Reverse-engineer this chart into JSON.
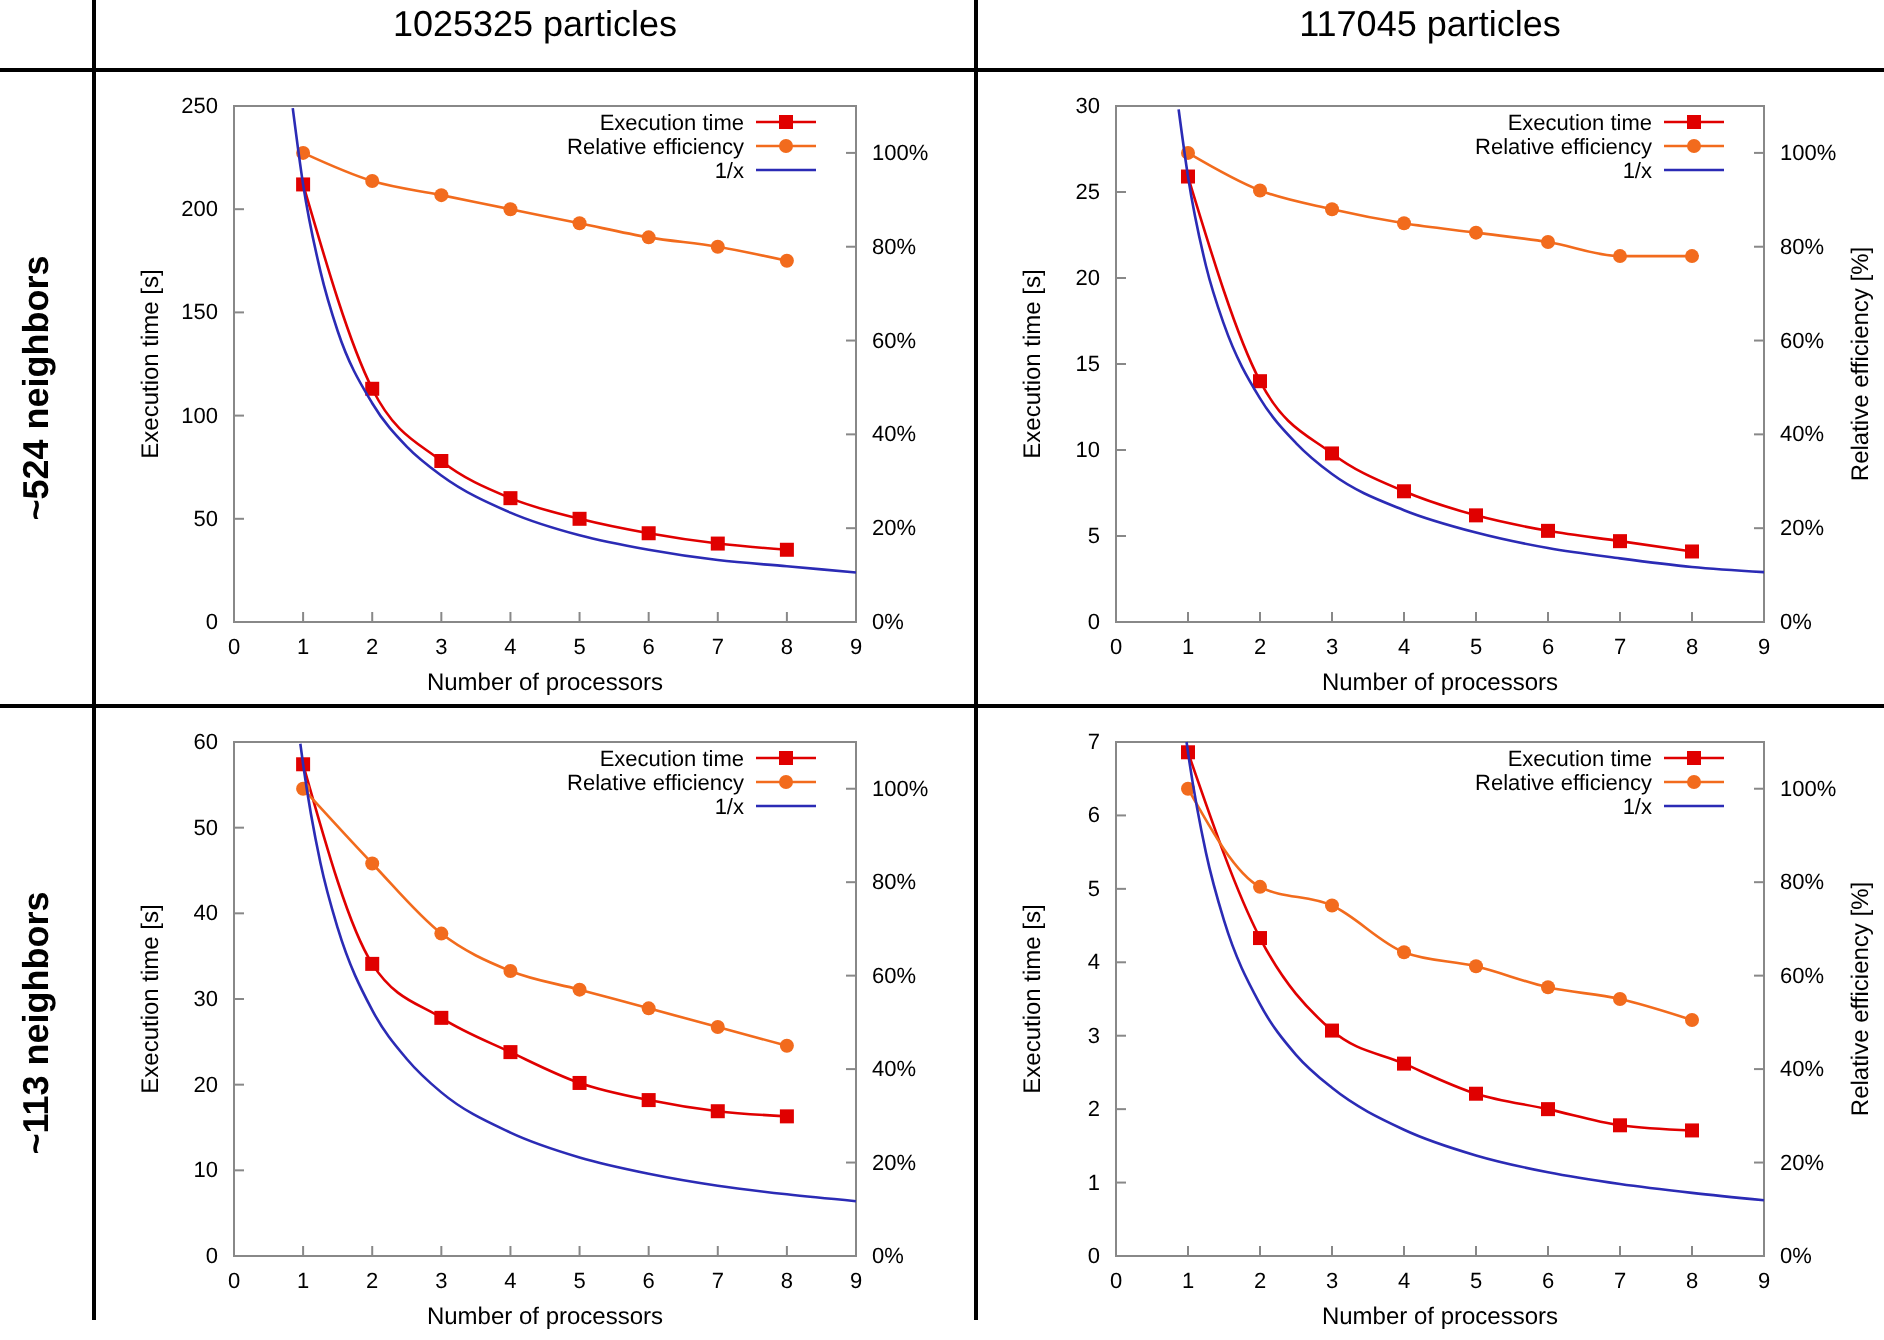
{
  "chart_data": [
    {
      "type": "line",
      "title": "1025325 particles",
      "annotations": [
        "~524 neighbors"
      ],
      "xlabel": "Number of processors",
      "ylabel": "Execution time [s]",
      "x": [
        1,
        2,
        3,
        4,
        5,
        6,
        7,
        8
      ],
      "xlim": [
        0,
        9
      ],
      "xticks": [
        0,
        1,
        2,
        3,
        4,
        5,
        6,
        7,
        8,
        9
      ],
      "ylim": [
        0,
        250
      ],
      "yticks": [
        0,
        50,
        100,
        150,
        200,
        250
      ],
      "y2lim": [
        0,
        110
      ],
      "y2ticks": [
        {
          "value": 0,
          "label": "0%"
        },
        {
          "value": 20,
          "label": "20%"
        },
        {
          "value": 40,
          "label": "40%"
        },
        {
          "value": 60,
          "label": "60%"
        },
        {
          "value": 80,
          "label": "80%"
        },
        {
          "value": 100,
          "label": "100%"
        }
      ],
      "grid": false,
      "legend": "top right",
      "series": [
        {
          "name": "Execution time",
          "color": "#e00000",
          "marker": "square",
          "values": [
            212,
            113,
            78,
            60,
            50,
            43,
            38,
            35
          ]
        },
        {
          "name": "Relative efficiency",
          "color": "#f26b1d",
          "marker": "circle",
          "axis": "y2",
          "values": [
            100,
            94,
            91,
            88,
            85,
            82,
            80,
            77
          ]
        },
        {
          "name": "1/x",
          "color": "#2b2bb5",
          "marker": "none",
          "x": [
            0.85,
            1,
            1.25,
            1.5,
            2,
            2.5,
            3,
            4,
            5,
            6,
            7,
            8,
            9
          ],
          "values": [
            249,
            212,
            170,
            141,
            106,
            85,
            71,
            53,
            42,
            35,
            30,
            27,
            24
          ]
        }
      ]
    },
    {
      "type": "line",
      "title": "117045 particles",
      "xlabel": "Number of processors",
      "ylabel": "Execution time [s]",
      "y2label": "Relative efficiency [%]",
      "x": [
        1,
        2,
        3,
        4,
        5,
        6,
        7,
        8
      ],
      "xlim": [
        0,
        9
      ],
      "xticks": [
        0,
        1,
        2,
        3,
        4,
        5,
        6,
        7,
        8,
        9
      ],
      "ylim": [
        0,
        30
      ],
      "yticks": [
        0,
        5,
        10,
        15,
        20,
        25,
        30
      ],
      "y2lim": [
        0,
        110
      ],
      "y2ticks": [
        {
          "value": 0,
          "label": "0%"
        },
        {
          "value": 20,
          "label": "20%"
        },
        {
          "value": 40,
          "label": "40%"
        },
        {
          "value": 60,
          "label": "60%"
        },
        {
          "value": 80,
          "label": "80%"
        },
        {
          "value": 100,
          "label": "100%"
        }
      ],
      "grid": false,
      "legend": "top right",
      "series": [
        {
          "name": "Execution time",
          "color": "#e00000",
          "marker": "square",
          "values": [
            25.9,
            14.0,
            9.8,
            7.6,
            6.2,
            5.3,
            4.7,
            4.1
          ]
        },
        {
          "name": "Relative efficiency",
          "color": "#f26b1d",
          "marker": "circle",
          "axis": "y2",
          "values": [
            100,
            92,
            88,
            85,
            83,
            81,
            78,
            78
          ]
        },
        {
          "name": "1/x",
          "color": "#2b2bb5",
          "marker": "none",
          "x": [
            0.87,
            1,
            1.25,
            1.5,
            2,
            2.5,
            3,
            4,
            5,
            6,
            7,
            8,
            9
          ],
          "values": [
            29.8,
            25.9,
            20.7,
            17.3,
            13.0,
            10.4,
            8.6,
            6.5,
            5.2,
            4.3,
            3.7,
            3.2,
            2.9
          ]
        }
      ]
    },
    {
      "type": "line",
      "annotations": [
        "~113 neighbors"
      ],
      "xlabel": "Number of processors",
      "ylabel": "Execution time [s]",
      "x": [
        1,
        2,
        3,
        4,
        5,
        6,
        7,
        8
      ],
      "xlim": [
        0,
        9
      ],
      "xticks": [
        0,
        1,
        2,
        3,
        4,
        5,
        6,
        7,
        8,
        9
      ],
      "ylim": [
        0,
        60
      ],
      "yticks": [
        0,
        10,
        20,
        30,
        40,
        50,
        60
      ],
      "y2lim": [
        0,
        110
      ],
      "y2ticks": [
        {
          "value": 0,
          "label": "0%"
        },
        {
          "value": 20,
          "label": "20%"
        },
        {
          "value": 40,
          "label": "40%"
        },
        {
          "value": 60,
          "label": "60%"
        },
        {
          "value": 80,
          "label": "80%"
        },
        {
          "value": 100,
          "label": "100%"
        }
      ],
      "grid": false,
      "legend": "top right",
      "series": [
        {
          "name": "Execution time",
          "color": "#e00000",
          "marker": "square",
          "values": [
            57.4,
            34.1,
            27.8,
            23.8,
            20.2,
            18.2,
            16.9,
            16.3
          ]
        },
        {
          "name": "Relative efficiency",
          "color": "#f26b1d",
          "marker": "circle",
          "axis": "y2",
          "values": [
            100,
            84,
            69,
            61,
            57,
            53,
            49,
            45
          ]
        },
        {
          "name": "1/x",
          "color": "#2b2bb5",
          "marker": "none",
          "x": [
            0.96,
            1,
            1.25,
            1.5,
            2,
            2.5,
            3,
            4,
            5,
            6,
            7,
            8,
            9
          ],
          "values": [
            59.8,
            57.4,
            45.9,
            38.3,
            28.7,
            23,
            19.1,
            14.4,
            11.5,
            9.6,
            8.2,
            7.2,
            6.4
          ]
        }
      ]
    },
    {
      "type": "line",
      "xlabel": "Number of processors",
      "ylabel": "Execution time [s]",
      "y2label": "Relative efficiency [%]",
      "x": [
        1,
        2,
        3,
        4,
        5,
        6,
        7,
        8
      ],
      "xlim": [
        0,
        9
      ],
      "xticks": [
        0,
        1,
        2,
        3,
        4,
        5,
        6,
        7,
        8,
        9
      ],
      "ylim": [
        0,
        7
      ],
      "yticks": [
        0,
        1,
        2,
        3,
        4,
        5,
        6,
        7
      ],
      "y2lim": [
        0,
        110
      ],
      "y2ticks": [
        {
          "value": 0,
          "label": "0%"
        },
        {
          "value": 20,
          "label": "20%"
        },
        {
          "value": 40,
          "label": "40%"
        },
        {
          "value": 60,
          "label": "60%"
        },
        {
          "value": 80,
          "label": "80%"
        },
        {
          "value": 100,
          "label": "100%"
        }
      ],
      "grid": false,
      "legend": "top right",
      "series": [
        {
          "name": "Execution time",
          "color": "#e00000",
          "marker": "square",
          "values": [
            6.86,
            4.33,
            3.07,
            2.62,
            2.21,
            2.0,
            1.78,
            1.71
          ]
        },
        {
          "name": "Relative efficiency",
          "color": "#f26b1d",
          "marker": "circle",
          "axis": "y2",
          "values": [
            100,
            79,
            75,
            65,
            62,
            57.5,
            55,
            50.5
          ]
        },
        {
          "name": "1/x",
          "color": "#2b2bb5",
          "marker": "none",
          "x": [
            0.98,
            1,
            1.25,
            1.5,
            2,
            2.5,
            3,
            4,
            5,
            6,
            7,
            8,
            9
          ],
          "values": [
            7.0,
            6.86,
            5.49,
            4.57,
            3.43,
            2.74,
            2.29,
            1.72,
            1.37,
            1.14,
            0.98,
            0.86,
            0.76
          ]
        }
      ]
    }
  ]
}
